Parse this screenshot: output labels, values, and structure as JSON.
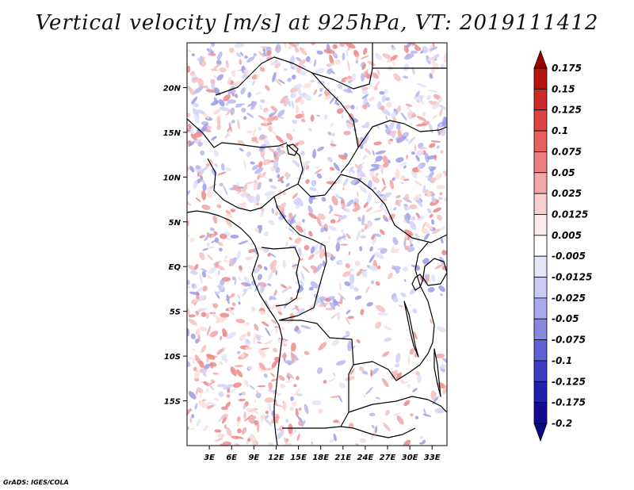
{
  "title": "Vertical velocity [m/s] at 925hPa, VT: 2019111412",
  "credit": "GrADS: IGES/COLA",
  "map": {
    "lon_range": [
      0,
      35
    ],
    "lat_range": [
      -20,
      25
    ],
    "x_ticks": [
      "3E",
      "6E",
      "9E",
      "12E",
      "15E",
      "18E",
      "21E",
      "24E",
      "27E",
      "30E",
      "33E"
    ],
    "x_tick_values": [
      3,
      6,
      9,
      12,
      15,
      18,
      21,
      24,
      27,
      30,
      33
    ],
    "y_ticks": [
      "20N",
      "15N",
      "10N",
      "5N",
      "EQ",
      "5S",
      "10S",
      "15S"
    ],
    "y_tick_values": [
      20,
      15,
      10,
      5,
      0,
      -5,
      -10,
      -15
    ]
  },
  "colorbar": {
    "levels": [
      "0.175",
      "0.15",
      "0.125",
      "0.1",
      "0.075",
      "0.05",
      "0.025",
      "0.0125",
      "0.005",
      "-0.005",
      "-0.0125",
      "-0.025",
      "-0.05",
      "-0.075",
      "-0.1",
      "-0.125",
      "-0.175",
      "-0.2"
    ],
    "colors": [
      "#9b0000",
      "#b91414",
      "#cc2a2a",
      "#dd4343",
      "#e46060",
      "#ec8080",
      "#f3a7a7",
      "#f9cfcf",
      "#fdeaea",
      "#ffffff",
      "#e6e6fb",
      "#cacaf4",
      "#a9a9ec",
      "#8787e2",
      "#6161d6",
      "#3d3dc6",
      "#2020b0",
      "#140a96",
      "#0a0a80"
    ]
  }
}
